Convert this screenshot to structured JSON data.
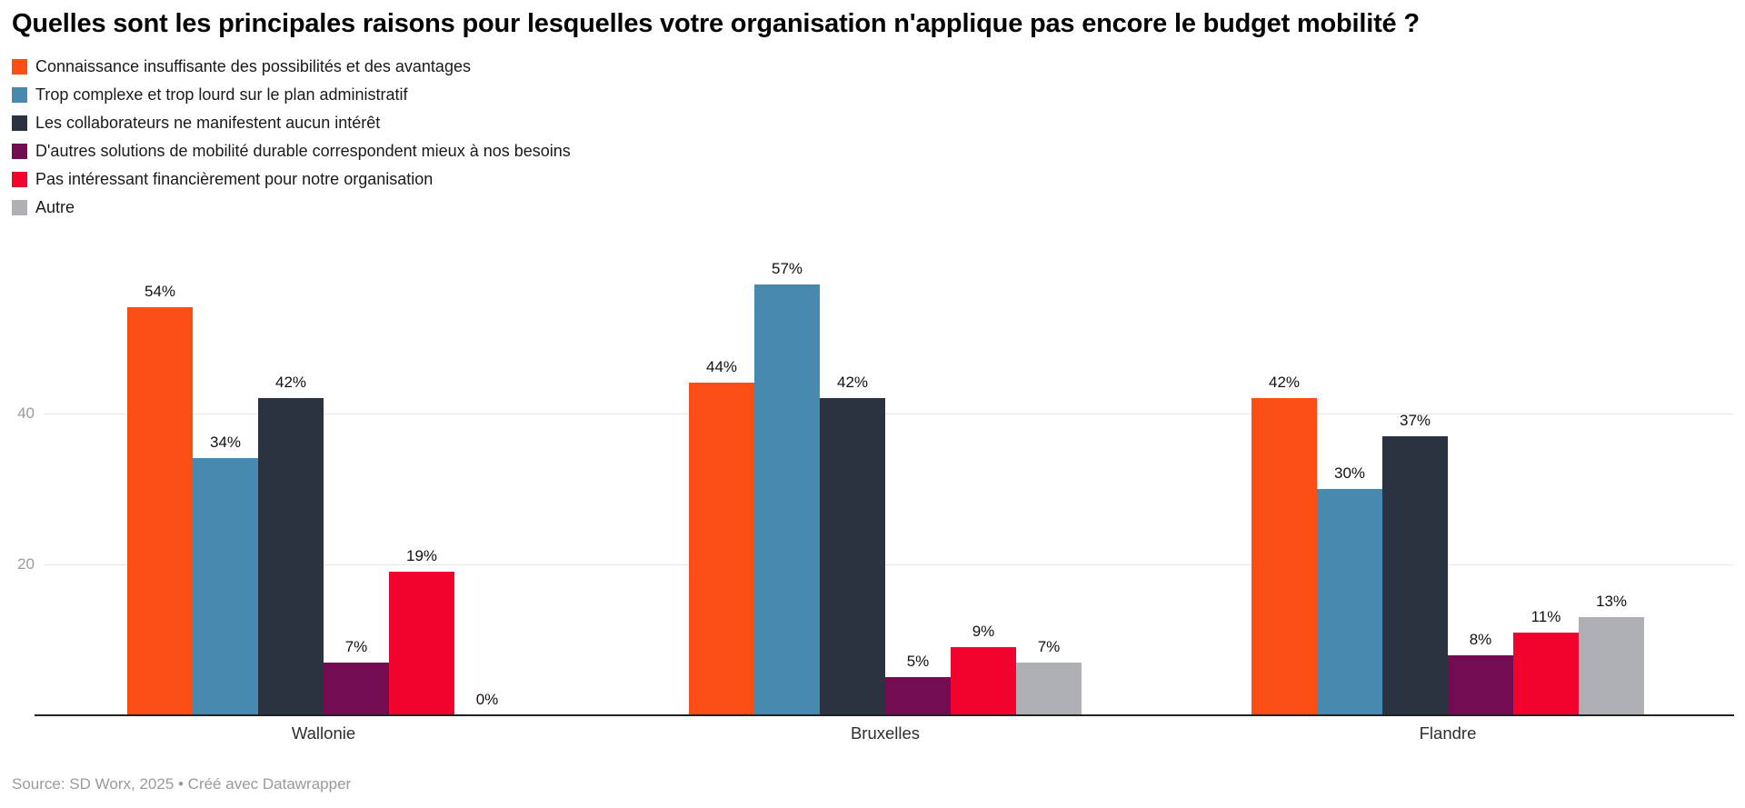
{
  "title": "Quelles sont les principales raisons pour lesquelles votre organisation n'applique pas encore le budget mobilité ?",
  "footer": "Source: SD Worx, 2025 • Créé avec Datawrapper",
  "colors": {
    "background": "#ffffff",
    "title_text": "#050505",
    "tick_text": "#9b9b9b",
    "gridline": "#e7e7e7",
    "axis_line": "#222222",
    "footer_text": "#9a9a9a"
  },
  "chart_data": {
    "type": "bar",
    "title": "Quelles sont les principales raisons pour lesquelles votre organisation n'applique pas encore le budget mobilité ?",
    "categories": [
      "Wallonie",
      "Bruxelles",
      "Flandre"
    ],
    "series": [
      {
        "name": "Connaissance insuffisante des possibilités et des avantages",
        "color": "#FA4E14",
        "values": [
          54,
          44,
          42
        ]
      },
      {
        "name": "Trop complexe et trop lourd sur le plan administratif",
        "color": "#4889B0",
        "values": [
          34,
          57,
          30
        ]
      },
      {
        "name": "Les collaborateurs ne manifestent aucun intérêt",
        "color": "#2C3340",
        "values": [
          42,
          42,
          37
        ]
      },
      {
        "name": "D'autres solutions de mobilité durable correspondent mieux à nos besoins",
        "color": "#730C50",
        "values": [
          7,
          5,
          8
        ]
      },
      {
        "name": "Pas intéressant financièrement pour notre organisation",
        "color": "#F2032E",
        "values": [
          19,
          9,
          11
        ]
      },
      {
        "name": "Autre",
        "color": "#AEB0B4",
        "values": [
          0,
          7,
          13
        ]
      }
    ],
    "value_suffix": "%",
    "value_labels": [
      [
        "54%",
        "34%",
        "42%",
        "7%",
        "19%",
        "0%"
      ],
      [
        "44%",
        "57%",
        "42%",
        "5%",
        "9%",
        "7%"
      ],
      [
        "42%",
        "30%",
        "37%",
        "8%",
        "11%",
        "13%"
      ]
    ],
    "yticks": [
      20,
      40
    ],
    "ylim": [
      0,
      60
    ],
    "grid": "horizontal",
    "legend_position": "top-left-vertical"
  }
}
